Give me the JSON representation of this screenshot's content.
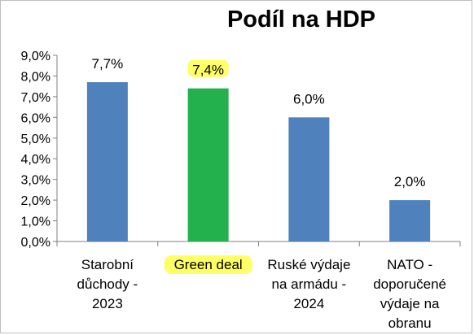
{
  "chart_data": {
    "type": "bar",
    "title": "Podíl na HDP",
    "categories": [
      [
        "Starobní",
        "důchody -",
        "2023"
      ],
      [
        "Green deal"
      ],
      [
        "Ruské výdaje",
        "na armádu -",
        "2024"
      ],
      [
        "NATO -",
        "doporučené",
        "výdaje na",
        "obranu"
      ]
    ],
    "values": [
      7.7,
      7.4,
      6.0,
      2.0
    ],
    "data_labels": [
      "7,7%",
      "7,4%",
      "6,0%",
      "2,0%"
    ],
    "y_ticks": [
      {
        "value": 0,
        "label": "0,0%"
      },
      {
        "value": 1,
        "label": "1,0%"
      },
      {
        "value": 2,
        "label": "2,0%"
      },
      {
        "value": 3,
        "label": "3,0%"
      },
      {
        "value": 4,
        "label": "4,0%"
      },
      {
        "value": 5,
        "label": "5,0%"
      },
      {
        "value": 6,
        "label": "6,0%"
      },
      {
        "value": 7,
        "label": "7,0%"
      },
      {
        "value": 8,
        "label": "8,0%"
      },
      {
        "value": 9,
        "label": "9,0%"
      }
    ],
    "ylim": [
      0,
      9
    ],
    "grid": false,
    "colors": {
      "bar": "#4f81bd",
      "highlight_bar": "#22b14c",
      "highlight_marker": "#ffff66",
      "axis": "#808080",
      "text": "#000000"
    },
    "highlighted_index": 1
  }
}
